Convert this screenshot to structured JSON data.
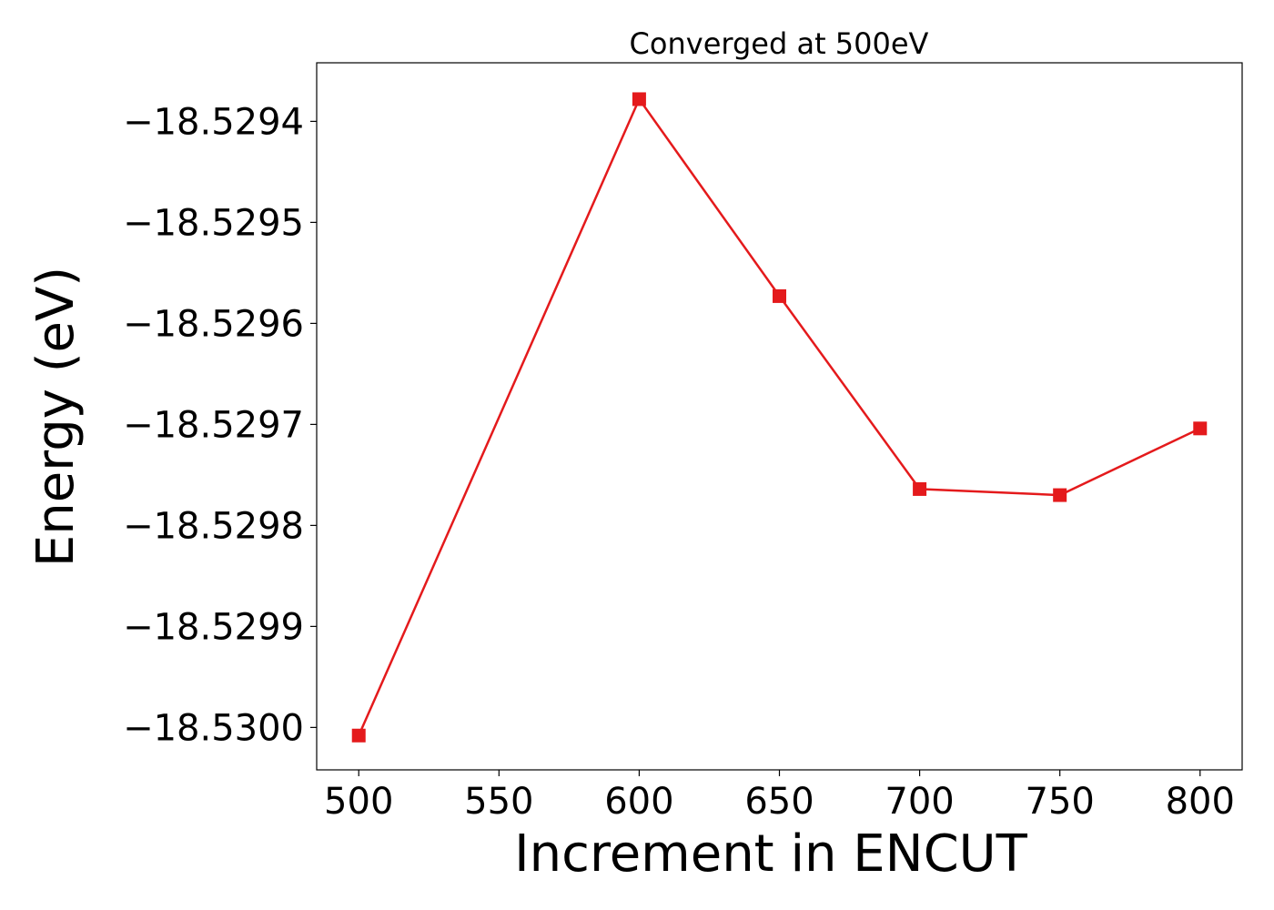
{
  "chart_data": {
    "type": "line",
    "title": "Converged at 500eV",
    "xlabel": "Increment in ENCUT",
    "ylabel": "Energy (eV)",
    "x": [
      500,
      600,
      650,
      700,
      750,
      800
    ],
    "series": [
      {
        "values": [
          -18.530008,
          -18.529378,
          -18.529573,
          -18.529764,
          -18.52977,
          -18.529704
        ],
        "color": "#e41a1c",
        "marker": "square"
      }
    ],
    "xlim": [
      485,
      815
    ],
    "ylim": [
      -18.530042,
      -18.529342
    ],
    "xticks": [
      500,
      550,
      600,
      650,
      700,
      750,
      800
    ],
    "xtick_labels": [
      "500",
      "550",
      "600",
      "650",
      "700",
      "750",
      "800"
    ],
    "yticks": [
      -18.5294,
      -18.5295,
      -18.5296,
      -18.5297,
      -18.5298,
      -18.5299,
      -18.53
    ],
    "ytick_labels": [
      "−18.5294",
      "−18.5295",
      "−18.5296",
      "−18.5297",
      "−18.5298",
      "−18.5299",
      "−18.5300"
    ],
    "grid": false,
    "legend": "none"
  }
}
